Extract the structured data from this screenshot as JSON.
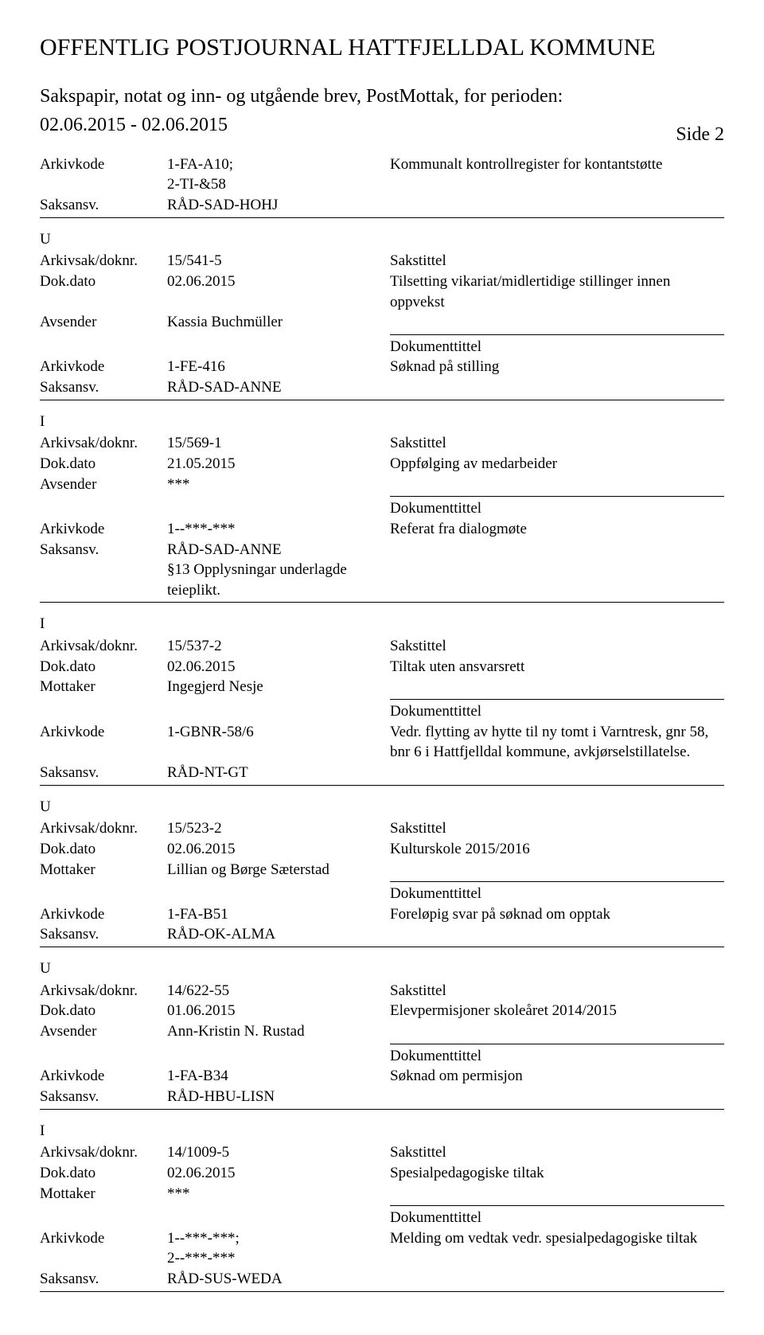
{
  "header": {
    "title": "OFFENTLIG POSTJOURNAL HATTFJELLDAL KOMMUNE",
    "subtitle": "Sakspapir, notat og inn- og utgående brev, PostMottak, for perioden:",
    "period": "02.06.2015 - 02.06.2015",
    "side": "Side 2"
  },
  "labels": {
    "arkivkode": "Arkivkode",
    "saksansv": "Saksansv.",
    "arkivsak": "Arkivsak/doknr.",
    "dokdato": "Dok.dato",
    "avsender": "Avsender",
    "mottaker": "Mottaker",
    "sakstittel": "Sakstittel",
    "dokumenttittel": "Dokumenttittel"
  },
  "topEntry": {
    "arkivkode": "1-FA-A10;\n2-TI-&58",
    "saksansv": "RÅD-SAD-HOHJ",
    "rightText": "Kommunalt kontrollregister for kontantstøtte"
  },
  "entries": [
    {
      "type": "U",
      "arkivsak": "15/541-5",
      "dokdato": "02.06.2015",
      "partyLabel": "Avsender",
      "party": "Kassia Buchmüller",
      "sakstittel": "Tilsetting vikariat/midlertidige stillinger innen oppvekst",
      "arkivkode": "1-FE-416",
      "doktittel": "Søknad på stilling",
      "saksansv": "RÅD-SAD-ANNE",
      "extra": ""
    },
    {
      "type": "I",
      "arkivsak": "15/569-1",
      "dokdato": "21.05.2015",
      "partyLabel": "Avsender",
      "party": "***",
      "sakstittel": "Oppfølging av medarbeider",
      "arkivkode": "1--***-***",
      "doktittel": "Referat fra dialogmøte",
      "saksansv": "RÅD-SAD-ANNE",
      "extra": "§13 Opplysningar underlagde teieplikt."
    },
    {
      "type": "I",
      "arkivsak": "15/537-2",
      "dokdato": "02.06.2015",
      "partyLabel": "Mottaker",
      "party": "Ingegjerd Nesje",
      "sakstittel": "Tiltak uten ansvarsrett",
      "arkivkode": "1-GBNR-58/6",
      "doktittel": "Vedr. flytting av hytte til ny tomt i Varntresk, gnr 58, bnr 6 i Hattfjelldal kommune, avkjørselstillatelse.",
      "saksansv": "RÅD-NT-GT",
      "extra": ""
    },
    {
      "type": "U",
      "arkivsak": "15/523-2",
      "dokdato": "02.06.2015",
      "partyLabel": "Mottaker",
      "party": "Lillian og Børge Sæterstad",
      "sakstittel": "Kulturskole 2015/2016",
      "arkivkode": "1-FA-B51",
      "doktittel": "Foreløpig svar på søknad om opptak",
      "saksansv": "RÅD-OK-ALMA",
      "extra": ""
    },
    {
      "type": "U",
      "arkivsak": "14/622-55",
      "dokdato": "01.06.2015",
      "partyLabel": "Avsender",
      "party": "Ann-Kristin N. Rustad",
      "sakstittel": "Elevpermisjoner skoleåret 2014/2015",
      "arkivkode": "1-FA-B34",
      "doktittel": "Søknad om permisjon",
      "saksansv": "RÅD-HBU-LISN",
      "extra": ""
    },
    {
      "type": "I",
      "arkivsak": "14/1009-5",
      "dokdato": "02.06.2015",
      "partyLabel": "Mottaker",
      "party": "***",
      "sakstittel": "Spesialpedagogiske tiltak",
      "arkivkode": "1--***-***;\n2--***-***",
      "doktittel": "Melding om vedtak vedr. spesialpedagogiske tiltak",
      "saksansv": "RÅD-SUS-WEDA",
      "extra": ""
    }
  ]
}
